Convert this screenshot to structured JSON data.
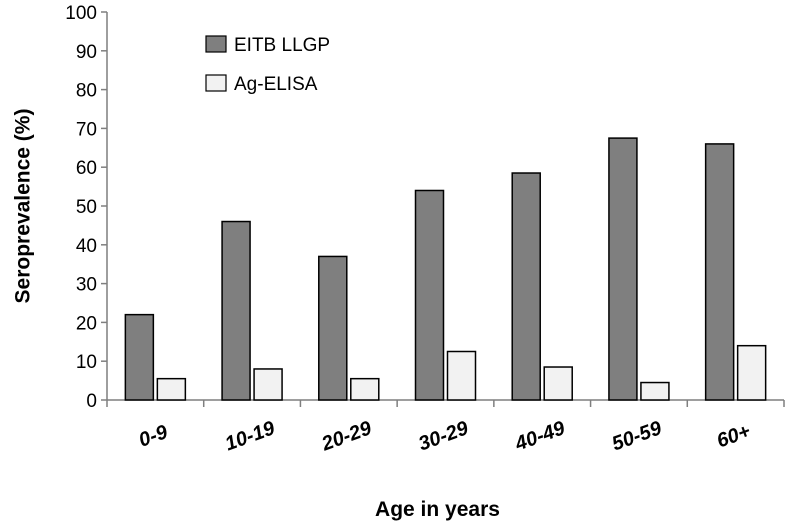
{
  "chart_data": {
    "type": "bar",
    "title": "",
    "xlabel": "Age in years",
    "ylabel": "Seroprevalence (%)",
    "ylim": [
      0,
      100
    ],
    "yticks": [
      0,
      10,
      20,
      30,
      40,
      50,
      60,
      70,
      80,
      90,
      100
    ],
    "categories": [
      "0-9",
      "10-19",
      "20-29",
      "30-29",
      "40-49",
      "50-59",
      "60+"
    ],
    "series": [
      {
        "name": "EITB LLGP",
        "color": "#7f7f7f",
        "values": [
          22,
          46,
          37,
          54,
          58.5,
          67.5,
          66
        ]
      },
      {
        "name": "Ag-ELISA",
        "color": "#f2f2f2",
        "values": [
          5.5,
          8,
          5.5,
          12.5,
          8.5,
          4.5,
          14
        ]
      }
    ],
    "legend_position": "top-left",
    "grid": false
  }
}
